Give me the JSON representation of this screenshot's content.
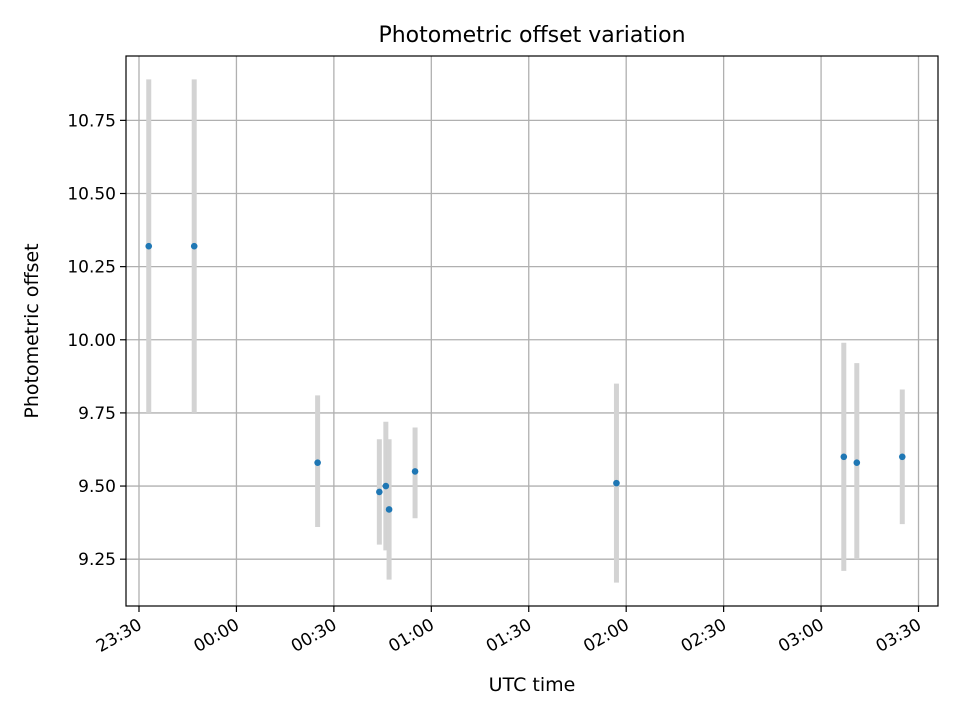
{
  "chart_data": {
    "type": "scatter",
    "title": "Photometric offset variation",
    "xlabel": "UTC time",
    "ylabel": "Photometric offset",
    "x_unit": "time of day (HH:MM, UTC)",
    "xlim": [
      "23:26",
      "03:36"
    ],
    "ylim": [
      9.09,
      10.97
    ],
    "xticks": [
      "23:30",
      "00:00",
      "00:30",
      "01:00",
      "01:30",
      "02:00",
      "02:30",
      "03:00",
      "03:30"
    ],
    "yticks": [
      9.25,
      9.5,
      9.75,
      10.0,
      10.25,
      10.5,
      10.75
    ],
    "grid": true,
    "marker_color": "#1f77b4",
    "errorbar_color": "#d3d3d3",
    "points": [
      {
        "time": "23:33",
        "y": 10.32,
        "ylow": 9.75,
        "yhigh": 10.89
      },
      {
        "time": "23:47",
        "y": 10.32,
        "ylow": 9.75,
        "yhigh": 10.89
      },
      {
        "time": "00:25",
        "y": 9.58,
        "ylow": 9.36,
        "yhigh": 9.81
      },
      {
        "time": "00:44",
        "y": 9.48,
        "ylow": 9.3,
        "yhigh": 9.66
      },
      {
        "time": "00:46",
        "y": 9.5,
        "ylow": 9.28,
        "yhigh": 9.72
      },
      {
        "time": "00:47",
        "y": 9.42,
        "ylow": 9.18,
        "yhigh": 9.66
      },
      {
        "time": "00:55",
        "y": 9.55,
        "ylow": 9.39,
        "yhigh": 9.7
      },
      {
        "time": "01:57",
        "y": 9.51,
        "ylow": 9.17,
        "yhigh": 9.85
      },
      {
        "time": "03:07",
        "y": 9.6,
        "ylow": 9.21,
        "yhigh": 9.99
      },
      {
        "time": "03:11",
        "y": 9.58,
        "ylow": 9.25,
        "yhigh": 9.92
      },
      {
        "time": "03:25",
        "y": 9.6,
        "ylow": 9.37,
        "yhigh": 9.83
      }
    ]
  }
}
